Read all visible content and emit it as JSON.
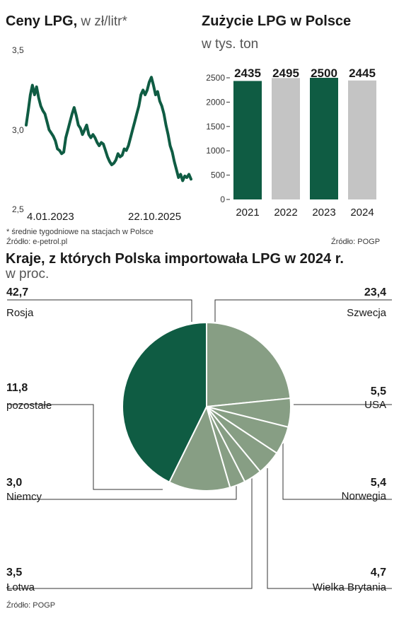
{
  "colors": {
    "dark_green": "#0f5c43",
    "gray": "#c4c4c4",
    "sage": "#879e84",
    "line": "#333333"
  },
  "line_chart": {
    "title": "Ceny LPG,",
    "subtitle": " w zł/litr*",
    "footnote": "* średnie tygodniowe na stacjach w Polsce",
    "source": "Źródło: e-petrol.pl"
  },
  "bar_chart": {
    "title": "Zużycie LPG w Polsce",
    "subtitle": "w tys. ton",
    "source": "Źródło: POGP"
  },
  "pie_chart": {
    "title": "Kraje, z których Polska importowała LPG w 2024 r.",
    "subtitle": "w proc.",
    "source": "Źródło: POGP"
  },
  "chart_data": [
    {
      "type": "line",
      "title": "Ceny LPG,",
      "subtitle": "w zł/litr*",
      "xlabel": "",
      "ylabel": "",
      "x_tick_labels": [
        "4.01.2023",
        "22.10.2025"
      ],
      "y_ticks": [
        "3,5",
        "3,0",
        "2,5"
      ],
      "ylim": [
        2.5,
        3.5
      ],
      "grid": false,
      "series": [
        {
          "values": [
            3.03,
            3.12,
            3.22,
            3.28,
            3.22,
            3.27,
            3.2,
            3.15,
            3.12,
            3.1,
            3.05,
            3.0,
            2.98,
            2.96,
            2.93,
            2.88,
            2.87,
            2.85,
            2.86,
            2.95,
            3.0,
            3.05,
            3.1,
            3.14,
            3.09,
            3.03,
            3.01,
            2.97,
            3.0,
            3.03,
            2.97,
            2.95,
            2.97,
            2.95,
            2.92,
            2.9,
            2.92,
            2.91,
            2.87,
            2.83,
            2.8,
            2.78,
            2.79,
            2.81,
            2.85,
            2.83,
            2.84,
            2.88,
            2.87,
            2.9,
            2.95,
            3.0,
            3.05,
            3.1,
            3.15,
            3.22,
            3.25,
            3.22,
            3.25,
            3.3,
            3.33,
            3.28,
            3.22,
            3.24,
            3.18,
            3.15,
            3.1,
            3.03,
            2.97,
            2.9,
            2.86,
            2.8,
            2.75,
            2.7,
            2.72,
            2.68,
            2.71,
            2.7,
            2.72,
            2.69
          ]
        }
      ]
    },
    {
      "type": "bar",
      "title": "Zużycie LPG w Polsce",
      "subtitle": "w tys. ton",
      "categories": [
        "2021",
        "2022",
        "2023",
        "2024"
      ],
      "values": [
        2435,
        2495,
        2500,
        2445
      ],
      "value_labels": [
        "2435",
        "2495",
        "2500",
        "2445"
      ],
      "bar_colors": [
        "#0f5c43",
        "#c4c4c4",
        "#0f5c43",
        "#c4c4c4"
      ],
      "y_ticks": [
        0,
        500,
        1000,
        1500,
        2000,
        2500
      ],
      "ylim": [
        0,
        2800
      ],
      "grid": false,
      "xlabel": "",
      "ylabel": ""
    },
    {
      "type": "pie",
      "title": "Kraje, z których Polska importowała LPG w 2024 r.",
      "subtitle": "w proc.",
      "labels": [
        "Szwecja",
        "USA",
        "Norwegia",
        "Wielka Brytania",
        "Łotwa",
        "Niemcy",
        "pozostałe",
        "Rosja"
      ],
      "values": [
        23.4,
        5.5,
        5.4,
        4.7,
        3.5,
        3.0,
        11.8,
        42.7
      ],
      "value_labels": [
        "23,4",
        "5,5",
        "5,4",
        "4,7",
        "3,5",
        "3,0",
        "11,8",
        "42,7"
      ],
      "colors": [
        "#879e84",
        "#879e84",
        "#879e84",
        "#879e84",
        "#879e84",
        "#879e84",
        "#879e84",
        "#0f5c43"
      ]
    }
  ]
}
